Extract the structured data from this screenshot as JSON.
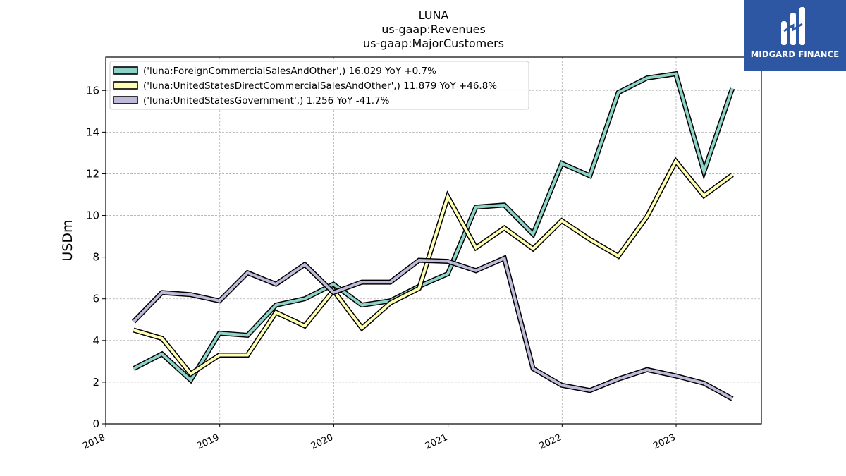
{
  "chart_data": {
    "type": "line",
    "title": [
      "LUNA",
      "us-gaap:Revenues",
      "us-gaap:MajorCustomers"
    ],
    "xlabel": "",
    "ylabel": "USDm",
    "xlim": [
      "2018-01-01",
      "2023-10-01"
    ],
    "ylim": [
      0,
      17.6
    ],
    "x_ticks": [
      "2018",
      "2019",
      "2020",
      "2021",
      "2022",
      "2023"
    ],
    "y_ticks": [
      0,
      2,
      4,
      6,
      8,
      10,
      12,
      14,
      16
    ],
    "grid": true,
    "legend_position": "top-left",
    "x": [
      "2018-03-31",
      "2018-06-30",
      "2018-09-30",
      "2018-12-31",
      "2019-03-31",
      "2019-06-30",
      "2019-09-30",
      "2019-12-31",
      "2020-03-31",
      "2020-06-30",
      "2020-09-30",
      "2020-12-31",
      "2021-03-31",
      "2021-06-30",
      "2021-09-30",
      "2021-12-31",
      "2022-03-31",
      "2022-06-30",
      "2022-09-30",
      "2022-12-31",
      "2023-03-31",
      "2023-06-30"
    ],
    "series": [
      {
        "name": "('luna:ForeignCommercialSalesAndOther',) 16.029 YoY +0.7%",
        "color": "#8dd3c7",
        "values": [
          2.65,
          3.35,
          2.1,
          4.35,
          4.25,
          5.7,
          6.0,
          6.7,
          5.7,
          5.9,
          6.6,
          7.2,
          10.4,
          10.5,
          9.1,
          12.5,
          11.9,
          15.9,
          16.6,
          16.8,
          12.1,
          16.1
        ]
      },
      {
        "name": "('luna:UnitedStatesDirectCommercialSalesAndOther',) 11.879 YoY +46.8%",
        "color": "#ffffb3",
        "values": [
          4.5,
          4.1,
          2.4,
          3.3,
          3.3,
          5.35,
          4.7,
          6.4,
          4.6,
          5.8,
          6.5,
          10.9,
          8.45,
          9.4,
          8.4,
          9.75,
          8.85,
          8.05,
          9.95,
          12.6,
          10.95,
          11.95
        ]
      },
      {
        "name": "('luna:UnitedStatesGovernment',) 1.256 YoY -41.7%",
        "color": "#bebada",
        "values": [
          4.9,
          6.3,
          6.2,
          5.9,
          7.25,
          6.7,
          7.65,
          6.3,
          6.8,
          6.8,
          7.85,
          7.8,
          7.35,
          7.95,
          2.65,
          1.85,
          1.6,
          2.15,
          2.6,
          2.3,
          1.95,
          1.2
        ]
      }
    ]
  },
  "brand": {
    "name": "MIDGARD FINANCE",
    "bg_color": "#2e57a3"
  }
}
